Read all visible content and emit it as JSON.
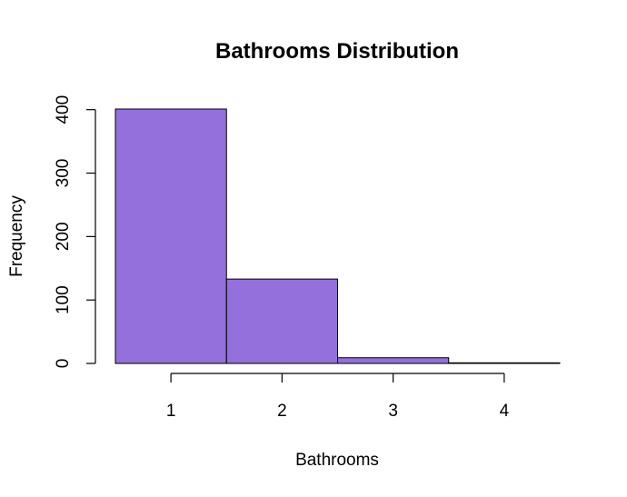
{
  "chart_data": {
    "type": "bar",
    "title": "Bathrooms Distribution",
    "xlabel": "Bathrooms",
    "ylabel": "Frequency",
    "bin_edges": [
      0.5,
      1.5,
      2.5,
      3.5,
      4.5
    ],
    "categories": [
      "1",
      "2",
      "3",
      "4"
    ],
    "values": [
      401,
      133,
      9,
      1
    ],
    "x_ticks": [
      1,
      2,
      3,
      4
    ],
    "y_ticks": [
      0,
      100,
      200,
      300,
      400
    ],
    "xlim": [
      0.5,
      4.5
    ],
    "ylim": [
      0,
      401
    ],
    "bar_color": "#9370DB",
    "grid": false,
    "legend": "none"
  }
}
